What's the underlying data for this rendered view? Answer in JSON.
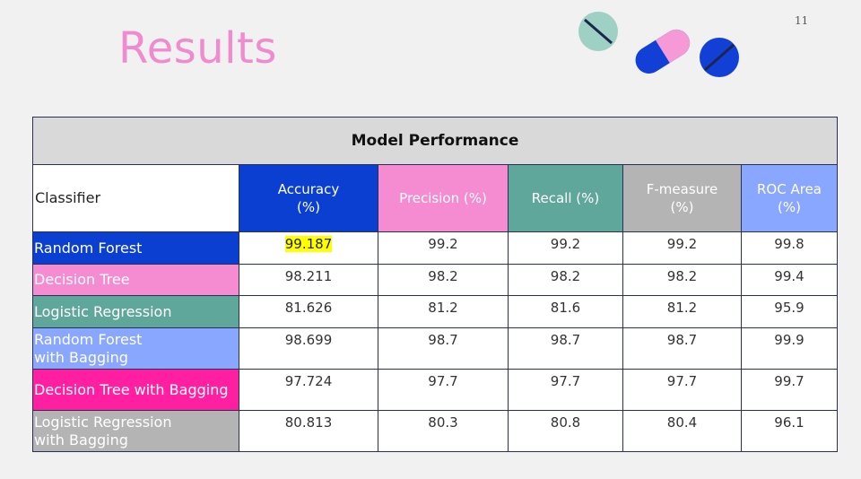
{
  "slide": {
    "title": "Results",
    "page_number": "11"
  },
  "table": {
    "caption": "Model Performance",
    "header_label": "Classifier",
    "columns": [
      {
        "label": "Accuracy\n(%)",
        "bg": "#0a3fd2"
      },
      {
        "label": "Precision (%)",
        "bg": "#f58bd1"
      },
      {
        "label": "Recall (%)",
        "bg": "#5fa69b"
      },
      {
        "label": "F-measure\n(%)",
        "bg": "#b4b4b4"
      },
      {
        "label": "ROC Area\n(%)",
        "bg": "#8aa7ff"
      }
    ],
    "rows": [
      {
        "name": "Random Forest",
        "bg": "#0a3fd2",
        "values": [
          "99.187",
          "99.2",
          "99.2",
          "99.2",
          "99.8"
        ],
        "highlight": 0,
        "height": 36
      },
      {
        "name": "Decision Tree",
        "bg": "#f58bd1",
        "values": [
          "98.211",
          "98.2",
          "98.2",
          "98.2",
          "99.4"
        ],
        "height": 35
      },
      {
        "name": "Logistic Regression",
        "bg": "#5fa69b",
        "values": [
          "81.626",
          "81.2",
          "81.6",
          "81.2",
          "95.9"
        ],
        "height": 36
      },
      {
        "name": "Random Forest\nwith Bagging",
        "bg": "#8aa7ff",
        "values": [
          "98.699",
          "98.7",
          "98.7",
          "98.7",
          "99.9"
        ],
        "height": 46
      },
      {
        "name": "Decision Tree with Bagging",
        "bg": "#ff1fa0",
        "values": [
          "97.724",
          "97.7",
          "97.7",
          "97.7",
          "99.7"
        ],
        "height": 46
      },
      {
        "name": "Logistic Regression\nwith Bagging",
        "bg": "#b4b4b4",
        "values": [
          "80.813",
          "80.3",
          "80.8",
          "80.4",
          "96.1"
        ],
        "height": 46
      }
    ]
  },
  "decor": {
    "icons": [
      "teal-pill-icon",
      "capsule-icon",
      "blue-pill-icon"
    ]
  }
}
